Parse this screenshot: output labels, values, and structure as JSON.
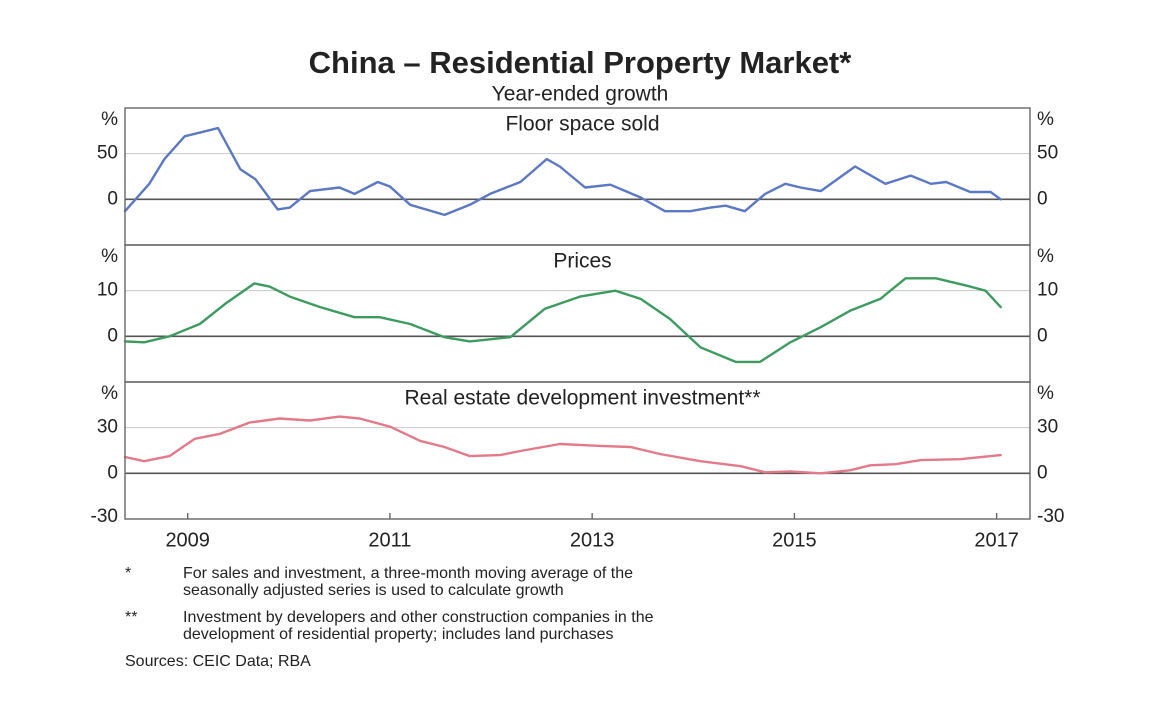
{
  "title": "China – Residential Property Market*",
  "subtitle": "Year-ended growth",
  "chart_data": [
    {
      "type": "line",
      "title": "Floor space sold",
      "y_unit": "%",
      "xlim": [
        2008.38,
        2017.33
      ],
      "ylim": [
        -50,
        100
      ],
      "yticks": [
        0,
        50
      ],
      "grid": true,
      "series": [
        {
          "color": "#5b78c2",
          "x": [
            2008.38,
            2008.62,
            2008.77,
            2008.97,
            2009.3,
            2009.52,
            2009.67,
            2009.89,
            2010.01,
            2010.21,
            2010.5,
            2010.65,
            2010.88,
            2011.0,
            2011.2,
            2011.54,
            2011.79,
            2011.99,
            2012.29,
            2012.55,
            2012.68,
            2012.93,
            2013.18,
            2013.48,
            2013.72,
            2013.97,
            2014.17,
            2014.32,
            2014.51,
            2014.71,
            2014.91,
            2015.06,
            2015.26,
            2015.6,
            2015.9,
            2016.15,
            2016.35,
            2016.5,
            2016.74,
            2016.94,
            2017.04
          ],
          "values": [
            -13,
            17,
            44,
            69,
            78,
            33,
            22,
            -11,
            -9,
            9,
            13,
            6,
            19,
            14,
            -6,
            -17,
            -6,
            6,
            19,
            44,
            36,
            13,
            16,
            2,
            -13,
            -13,
            -9,
            -7,
            -13,
            6,
            17,
            13,
            9,
            36,
            17,
            26,
            17,
            19,
            8,
            8,
            0
          ]
        }
      ]
    },
    {
      "type": "line",
      "title": "Prices",
      "y_unit": "%",
      "xlim": [
        2008.38,
        2017.33
      ],
      "ylim": [
        -10,
        20
      ],
      "yticks": [
        0,
        10
      ],
      "grid": true,
      "series": [
        {
          "color": "#3e9b5f",
          "x": [
            2008.38,
            2008.57,
            2008.82,
            2009.12,
            2009.37,
            2009.66,
            2009.81,
            2010.01,
            2010.31,
            2010.65,
            2010.9,
            2011.2,
            2011.54,
            2011.79,
            2012.19,
            2012.53,
            2012.88,
            2013.23,
            2013.48,
            2013.77,
            2014.07,
            2014.42,
            2014.66,
            2014.96,
            2015.26,
            2015.55,
            2015.85,
            2016.1,
            2016.4,
            2016.74,
            2016.89,
            2017.04
          ],
          "values": [
            -1.1,
            -1.3,
            0,
            2.7,
            7.1,
            11.6,
            10.9,
            8.7,
            6.4,
            4.2,
            4.2,
            2.7,
            -0.2,
            -1.1,
            -0.2,
            6,
            8.7,
            10,
            8.2,
            3.8,
            -2.4,
            -5.6,
            -5.6,
            -1.3,
            2,
            5.6,
            8.2,
            12.7,
            12.7,
            10.9,
            10,
            6.4
          ]
        }
      ]
    },
    {
      "type": "line",
      "title": "Real estate development investment**",
      "y_unit": "%",
      "xlim": [
        2008.38,
        2017.33
      ],
      "xticks": [
        2009,
        2011,
        2013,
        2015,
        2017
      ],
      "ylim": [
        -30,
        60
      ],
      "yticks": [
        -30,
        0,
        30
      ],
      "grid": true,
      "series": [
        {
          "color": "#e37a8a",
          "x": [
            2008.38,
            2008.57,
            2008.82,
            2009.07,
            2009.32,
            2009.61,
            2009.91,
            2010.21,
            2010.5,
            2010.7,
            2011.0,
            2011.3,
            2011.54,
            2011.79,
            2012.09,
            2012.29,
            2012.68,
            2013.08,
            2013.38,
            2013.67,
            2014.07,
            2014.47,
            2014.71,
            2014.96,
            2015.26,
            2015.55,
            2015.75,
            2016.0,
            2016.25,
            2016.64,
            2017.04
          ],
          "values": [
            10.7,
            8,
            11.3,
            22.7,
            26,
            33.3,
            36,
            34.7,
            37.3,
            36,
            30.7,
            21.3,
            17.3,
            11.3,
            12,
            14.7,
            19.3,
            18,
            17.3,
            12.7,
            8,
            4.7,
            0.7,
            1.3,
            0,
            2,
            5.3,
            6,
            8.7,
            9.3,
            12
          ]
        }
      ]
    }
  ],
  "notes": [
    {
      "marker": "*",
      "lines": [
        "For sales and investment, a three-month moving average of the",
        "seasonally adjusted series is used to calculate growth"
      ]
    },
    {
      "marker": "**",
      "lines": [
        "Investment by developers and other construction companies in the",
        "development of residential property; includes land purchases"
      ]
    }
  ],
  "source": "Sources: CEIC Data; RBA"
}
